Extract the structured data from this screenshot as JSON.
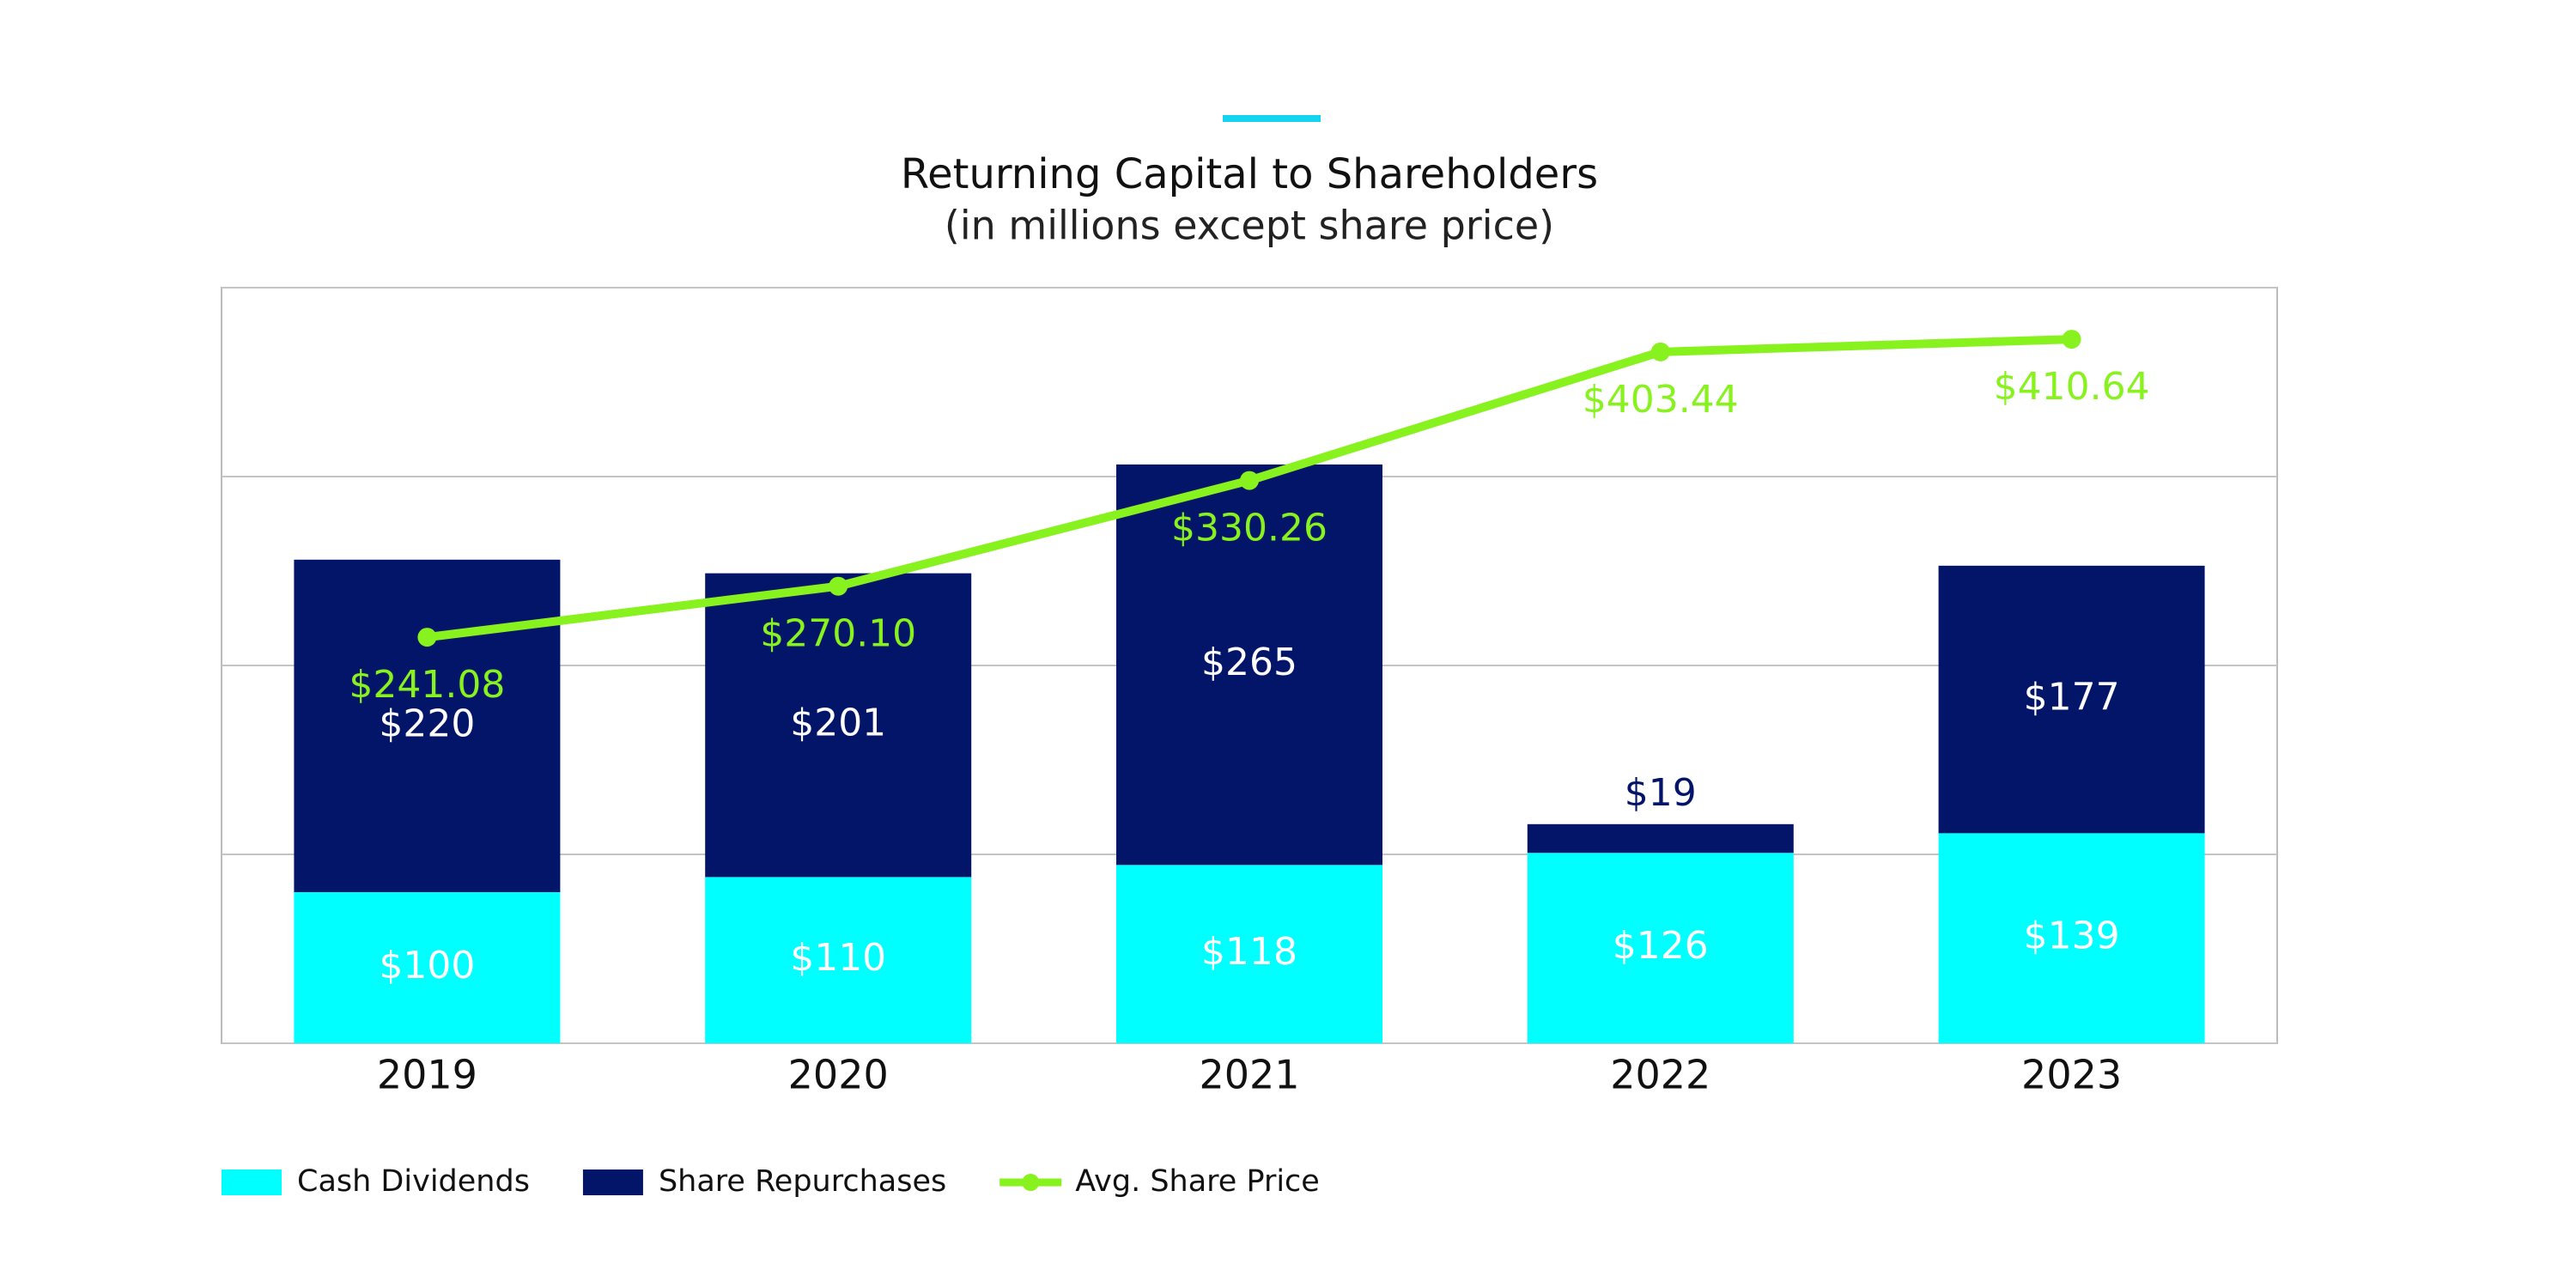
{
  "chart_data": {
    "type": "bar",
    "stacked": true,
    "title": "Returning Capital to Shareholders",
    "subtitle": "(in millions except share price)",
    "categories": [
      "2019",
      "2020",
      "2021",
      "2022",
      "2023"
    ],
    "series": [
      {
        "name": "Cash Dividends",
        "color": "#00ffff",
        "values": [
          100,
          110,
          118,
          126,
          139
        ],
        "value_labels": [
          "$100",
          "$110",
          "$118",
          "$126",
          "$139"
        ]
      },
      {
        "name": "Share Repurchases",
        "color": "#031569",
        "values": [
          220,
          201,
          265,
          19,
          177
        ],
        "value_labels": [
          "$220",
          "$201",
          "$265",
          "$19",
          "$177"
        ]
      },
      {
        "name": "Avg. Share Price",
        "type": "line",
        "axis": "y2",
        "color": "#88f21f",
        "values": [
          241.08,
          270.1,
          330.26,
          403.44,
          410.64
        ],
        "value_labels": [
          "$241.08",
          "$270.10",
          "$330.26",
          "$403.44",
          "$410.64"
        ]
      }
    ],
    "ylim": [
      0,
      500
    ],
    "yticks": [
      0,
      125,
      250,
      375,
      500
    ],
    "y2lim": [
      10,
      440
    ],
    "grid": true,
    "legend": "bottom-left"
  }
}
